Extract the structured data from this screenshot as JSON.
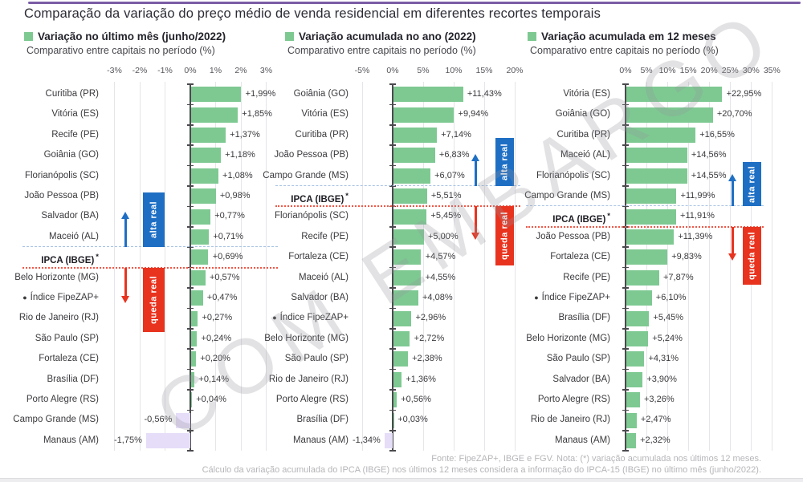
{
  "page": {
    "title": "Comparação da variação do preço médio de venda residencial em diferentes recortes temporais",
    "watermark": "COM EMBARGO",
    "footer_line1": "Fonte: FipeZAP+, IBGE e FGV. Nota: (*) variação acumulada nos últimos 12 meses.",
    "footer_line2": "Cálculo da variação acumulada do IPCA (IBGE) nos últimos 12 meses considera a informação do IPCA-15 (IBGE) no último mês (junho/2022)."
  },
  "icons": {
    "bullet": "●",
    "asterisk": "*"
  },
  "colors": {
    "bar_positive": "#7ec992",
    "bar_negative": "#e6ddf8",
    "alta_real": "#1e6fc4",
    "queda_real": "#e8331f",
    "reference_line_upper": "#a8c3e4",
    "reference_line_lower": "#ee5848",
    "accent_top_line": "#7b5ca6",
    "axis": "#4a4a4e",
    "gridline": "#e5e5ea"
  },
  "chart_data": [
    {
      "type": "bar",
      "orientation": "horizontal",
      "unit": "%",
      "title": "Variação no último mês (junho/2022)",
      "subtitle": "Comparativo entre capitais no período (%)",
      "axis_range": [
        -3.3,
        3.6
      ],
      "grid": true,
      "axis_ticks": [
        {
          "label": "-3%",
          "value": -3
        },
        {
          "label": "-2%",
          "value": -2
        },
        {
          "label": "-1%",
          "value": -1
        },
        {
          "label": "0%",
          "value": 0
        },
        {
          "label": "1%",
          "value": 1
        },
        {
          "label": "2%",
          "value": 2
        },
        {
          "label": "3%",
          "value": 3
        }
      ],
      "reference_band": {
        "above": "alta real",
        "below": "queda real"
      },
      "rows": [
        {
          "label": "Curitiba (PR)",
          "value": 1.99,
          "display": "+1,99%"
        },
        {
          "label": "Vitória (ES)",
          "value": 1.85,
          "display": "+1,85%"
        },
        {
          "label": "Recife (PE)",
          "value": 1.37,
          "display": "+1,37%"
        },
        {
          "label": "Goiânia (GO)",
          "value": 1.18,
          "display": "+1,18%"
        },
        {
          "label": "Florianópolis (SC)",
          "value": 1.08,
          "display": "+1,08%"
        },
        {
          "label": "João Pessoa (PB)",
          "value": 0.98,
          "display": "+0,98%"
        },
        {
          "label": "Salvador (BA)",
          "value": 0.77,
          "display": "+0,77%"
        },
        {
          "label": "Maceió (AL)",
          "value": 0.71,
          "display": "+0,71%"
        },
        {
          "label": "IPCA (IBGE)",
          "value": 0.69,
          "display": "+0,69%",
          "reference": true
        },
        {
          "label": "Belo Horizonte (MG)",
          "value": 0.57,
          "display": "+0,57%"
        },
        {
          "label": "Índice FipeZAP+",
          "value": 0.47,
          "display": "+0,47%",
          "bullet": true
        },
        {
          "label": "Rio de Janeiro (RJ)",
          "value": 0.27,
          "display": "+0,27%"
        },
        {
          "label": "São Paulo (SP)",
          "value": 0.24,
          "display": "+0,24%"
        },
        {
          "label": "Fortaleza (CE)",
          "value": 0.2,
          "display": "+0,20%"
        },
        {
          "label": "Brasília (DF)",
          "value": 0.14,
          "display": "+0,14%"
        },
        {
          "label": "Porto Alegre (RS)",
          "value": 0.04,
          "display": "+0,04%"
        },
        {
          "label": "Campo Grande (MS)",
          "value": -0.56,
          "display": "-0,56%"
        },
        {
          "label": "Manaus (AM)",
          "value": -1.75,
          "display": "-1,75%"
        }
      ]
    },
    {
      "type": "bar",
      "orientation": "horizontal",
      "unit": "%",
      "title": "Variação acumulada no ano (2022)",
      "subtitle": "Comparativo entre capitais no período (%)",
      "axis_range": [
        -6,
        21.5
      ],
      "grid": true,
      "axis_ticks": [
        {
          "label": "-5%",
          "value": -5
        },
        {
          "label": "0%",
          "value": 0
        },
        {
          "label": "5%",
          "value": 5
        },
        {
          "label": "10%",
          "value": 10
        },
        {
          "label": "15%",
          "value": 15
        },
        {
          "label": "20%",
          "value": 20
        }
      ],
      "reference_band": {
        "above": "alta real",
        "below": "queda real"
      },
      "rows": [
        {
          "label": "Goiânia (GO)",
          "value": 11.43,
          "display": "+11,43%"
        },
        {
          "label": "Vitória (ES)",
          "value": 9.94,
          "display": "+9,94%"
        },
        {
          "label": "Curitiba (PR)",
          "value": 7.14,
          "display": "+7,14%"
        },
        {
          "label": "João Pessoa (PB)",
          "value": 6.83,
          "display": "+6,83%"
        },
        {
          "label": "Campo Grande (MS)",
          "value": 6.07,
          "display": "+6,07%"
        },
        {
          "label": "IPCA (IBGE)",
          "value": 5.51,
          "display": "+5,51%",
          "reference": true
        },
        {
          "label": "Florianópolis (SC)",
          "value": 5.45,
          "display": "+5,45%"
        },
        {
          "label": "Recife (PE)",
          "value": 5.0,
          "display": "+5,00%"
        },
        {
          "label": "Fortaleza (CE)",
          "value": 4.57,
          "display": "+4,57%"
        },
        {
          "label": "Maceió (AL)",
          "value": 4.55,
          "display": "+4,55%"
        },
        {
          "label": "Salvador (BA)",
          "value": 4.08,
          "display": "+4,08%"
        },
        {
          "label": "Índice FipeZAP+",
          "value": 2.96,
          "display": "+2,96%",
          "bullet": true
        },
        {
          "label": "Belo Horizonte (MG)",
          "value": 2.72,
          "display": "+2,72%"
        },
        {
          "label": "São Paulo (SP)",
          "value": 2.38,
          "display": "+2,38%"
        },
        {
          "label": "Rio de Janeiro (RJ)",
          "value": 1.36,
          "display": "+1,36%"
        },
        {
          "label": "Porto Alegre (RS)",
          "value": 0.56,
          "display": "+0,56%"
        },
        {
          "label": "Brasília (DF)",
          "value": 0.03,
          "display": "+0,03%"
        },
        {
          "label": "Manaus (AM)",
          "value": -1.34,
          "display": "-1,34%"
        }
      ]
    },
    {
      "type": "bar",
      "orientation": "horizontal",
      "unit": "%",
      "title": "Variação acumulada em 12 meses",
      "subtitle": "Comparativo entre capitais no período (%)",
      "axis_range": [
        -1.7,
        37
      ],
      "grid": true,
      "axis_ticks": [
        {
          "label": "0%",
          "value": 0
        },
        {
          "label": "5%",
          "value": 5
        },
        {
          "label": "10%",
          "value": 10
        },
        {
          "label": "15%",
          "value": 15
        },
        {
          "label": "20%",
          "value": 20
        },
        {
          "label": "25%",
          "value": 25
        },
        {
          "label": "30%",
          "value": 30
        },
        {
          "label": "35%",
          "value": 35
        }
      ],
      "reference_band": {
        "above": "alta real",
        "below": "queda real"
      },
      "rows": [
        {
          "label": "Vitória (ES)",
          "value": 22.95,
          "display": "+22,95%"
        },
        {
          "label": "Goiânia (GO)",
          "value": 20.7,
          "display": "+20,70%"
        },
        {
          "label": "Curitiba (PR)",
          "value": 16.55,
          "display": "+16,55%"
        },
        {
          "label": "Maceió (AL)",
          "value": 14.56,
          "display": "+14,56%"
        },
        {
          "label": "Florianópolis (SC)",
          "value": 14.55,
          "display": "+14,55%"
        },
        {
          "label": "Campo Grande (MS)",
          "value": 11.99,
          "display": "+11,99%"
        },
        {
          "label": "IPCA (IBGE)",
          "value": 11.91,
          "display": "+11,91%",
          "reference": true
        },
        {
          "label": "João Pessoa (PB)",
          "value": 11.39,
          "display": "+11,39%"
        },
        {
          "label": "Fortaleza (CE)",
          "value": 9.83,
          "display": "+9,83%"
        },
        {
          "label": "Recife (PE)",
          "value": 7.87,
          "display": "+7,87%"
        },
        {
          "label": "Índice FipeZAP+",
          "value": 6.1,
          "display": "+6,10%",
          "bullet": true
        },
        {
          "label": "Brasília (DF)",
          "value": 5.45,
          "display": "+5,45%"
        },
        {
          "label": "Belo Horizonte (MG)",
          "value": 5.24,
          "display": "+5,24%"
        },
        {
          "label": "São Paulo (SP)",
          "value": 4.31,
          "display": "+4,31%"
        },
        {
          "label": "Salvador (BA)",
          "value": 3.9,
          "display": "+3,90%"
        },
        {
          "label": "Porto Alegre (RS)",
          "value": 3.26,
          "display": "+3,26%"
        },
        {
          "label": "Rio de Janeiro (RJ)",
          "value": 2.47,
          "display": "+2,47%"
        },
        {
          "label": "Manaus (AM)",
          "value": 2.32,
          "display": "+2,32%"
        }
      ]
    }
  ]
}
